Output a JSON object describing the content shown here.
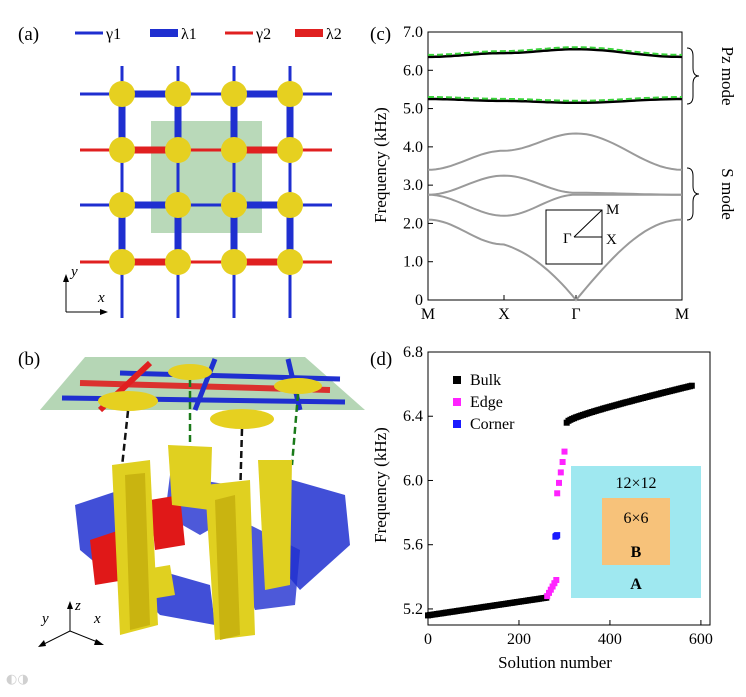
{
  "panels": {
    "a": {
      "label": "(a)",
      "legend": [
        {
          "name": "γ1",
          "color": "#1f2fd0",
          "thick": false
        },
        {
          "name": "λ1",
          "color": "#1f2fd0",
          "thick": true
        },
        {
          "name": "γ2",
          "color": "#e02020",
          "thick": false
        },
        {
          "name": "λ2",
          "color": "#e02020",
          "thick": true
        }
      ],
      "axis_x": "x",
      "axis_y": "y"
    },
    "b": {
      "label": "(b)",
      "axis_x": "x",
      "axis_y": "y",
      "axis_z": "z"
    },
    "c": {
      "label": "(c)",
      "ylabel": "Frequency (kHz)",
      "xticks": [
        "M",
        "X",
        "Γ",
        "M"
      ],
      "yticks": [
        "0",
        "1.0",
        "2.0",
        "3.0",
        "4.0",
        "5.0",
        "6.0",
        "7.0"
      ],
      "pz_label": "Pz mode",
      "s_label": "S mode",
      "inset": {
        "gamma": "Γ",
        "x": "X",
        "m": "M"
      }
    },
    "d": {
      "label": "(d)",
      "xlabel": "Solution number",
      "ylabel": "Frequency (kHz)",
      "xticks": [
        "0",
        "200",
        "400",
        "600"
      ],
      "yticks": [
        "5.2",
        "5.6",
        "6.0",
        "6.4",
        "6.8"
      ],
      "legend": [
        {
          "name": "Bulk",
          "color": "#000000"
        },
        {
          "name": "Edge",
          "color": "#ff22ff"
        },
        {
          "name": "Corner",
          "color": "#1a1aff"
        }
      ],
      "inset": {
        "outer": "12×12",
        "inner": "6×6",
        "inner_letter": "B",
        "outer_letter": "A",
        "outer_color": "#9fe8f0",
        "inner_color": "#f7c27a"
      }
    }
  },
  "chart_data": [
    {
      "type": "line",
      "panel": "c",
      "ylabel": "Frequency (kHz)",
      "ylim": [
        0,
        7
      ],
      "x": [
        "M",
        "X",
        "Γ",
        "M"
      ],
      "series": [
        {
          "values": [
            6.35,
            6.45,
            6.55,
            6.35
          ]
        },
        {
          "values": [
            5.25,
            5.2,
            5.15,
            5.25
          ]
        },
        {
          "values": [
            3.4,
            3.9,
            4.35,
            3.4
          ]
        },
        {
          "values": [
            2.75,
            3.25,
            2.8,
            2.75
          ]
        },
        {
          "values": [
            2.75,
            2.2,
            2.75,
            2.75
          ]
        },
        {
          "values": [
            2.1,
            1.45,
            0.0,
            2.1
          ]
        }
      ]
    },
    {
      "type": "scatter",
      "panel": "d",
      "xlabel": "Solution number",
      "ylabel": "Frequency (kHz)",
      "xlim": [
        0,
        620
      ],
      "ylim": [
        5.1,
        6.8
      ],
      "series": [
        {
          "name": "Bulk",
          "segments": [
            {
              "x": [
                0,
                260
              ],
              "y": [
                5.16,
                5.27
              ]
            },
            {
              "x": [
                305,
                580
              ],
              "y": [
                6.36,
                6.59
              ]
            }
          ]
        },
        {
          "name": "Edge",
          "segments": [
            {
              "x": [
                262,
                282
              ],
              "y": [
                5.28,
                5.38
              ]
            },
            {
              "x": [
                284,
                300
              ],
              "y": [
                5.92,
                6.18
              ]
            }
          ]
        },
        {
          "name": "Corner",
          "segments": [
            {
              "x": [
                280,
                284
              ],
              "y": [
                5.65,
                5.66
              ]
            }
          ]
        }
      ]
    }
  ]
}
